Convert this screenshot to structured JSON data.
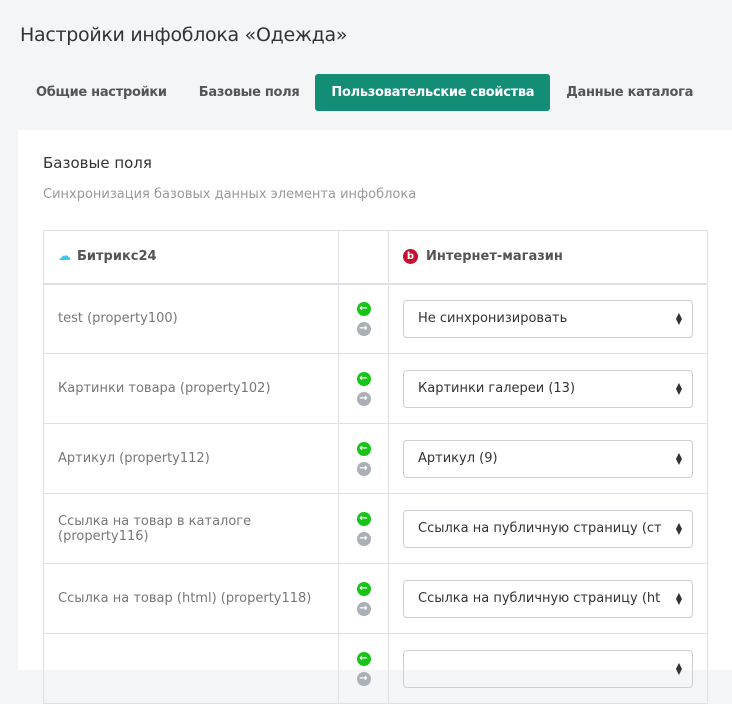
{
  "page": {
    "title": "Настройки инфоблока «Одежда»"
  },
  "tabs": [
    {
      "label": "Общие настройки",
      "active": false
    },
    {
      "label": "Базовые поля",
      "active": false
    },
    {
      "label": "Пользовательские свойства",
      "active": true
    },
    {
      "label": "Данные каталога",
      "active": false
    }
  ],
  "accent_color": "#138d75",
  "section": {
    "title": "Базовые поля",
    "subtitle": "Синхронизация базовых данных элемента инфоблока"
  },
  "table": {
    "col_left": "Битрикс24",
    "col_right": "Интернет-магазин",
    "rows": [
      {
        "field": "test (property100)",
        "value": "Не синхронизировать"
      },
      {
        "field": "Картинки товара (property102)",
        "value": "Картинки галереи (13)"
      },
      {
        "field": "Артикул (property112)",
        "value": "Артикул (9)"
      },
      {
        "field": "Ссылка на товар в каталоге (property116)",
        "value": "Ссылка на публичную страницу (ст"
      },
      {
        "field": "Ссылка на товар (html) (property118)",
        "value": "Ссылка на публичную страницу (ht"
      },
      {
        "field": "",
        "value": ""
      }
    ]
  }
}
